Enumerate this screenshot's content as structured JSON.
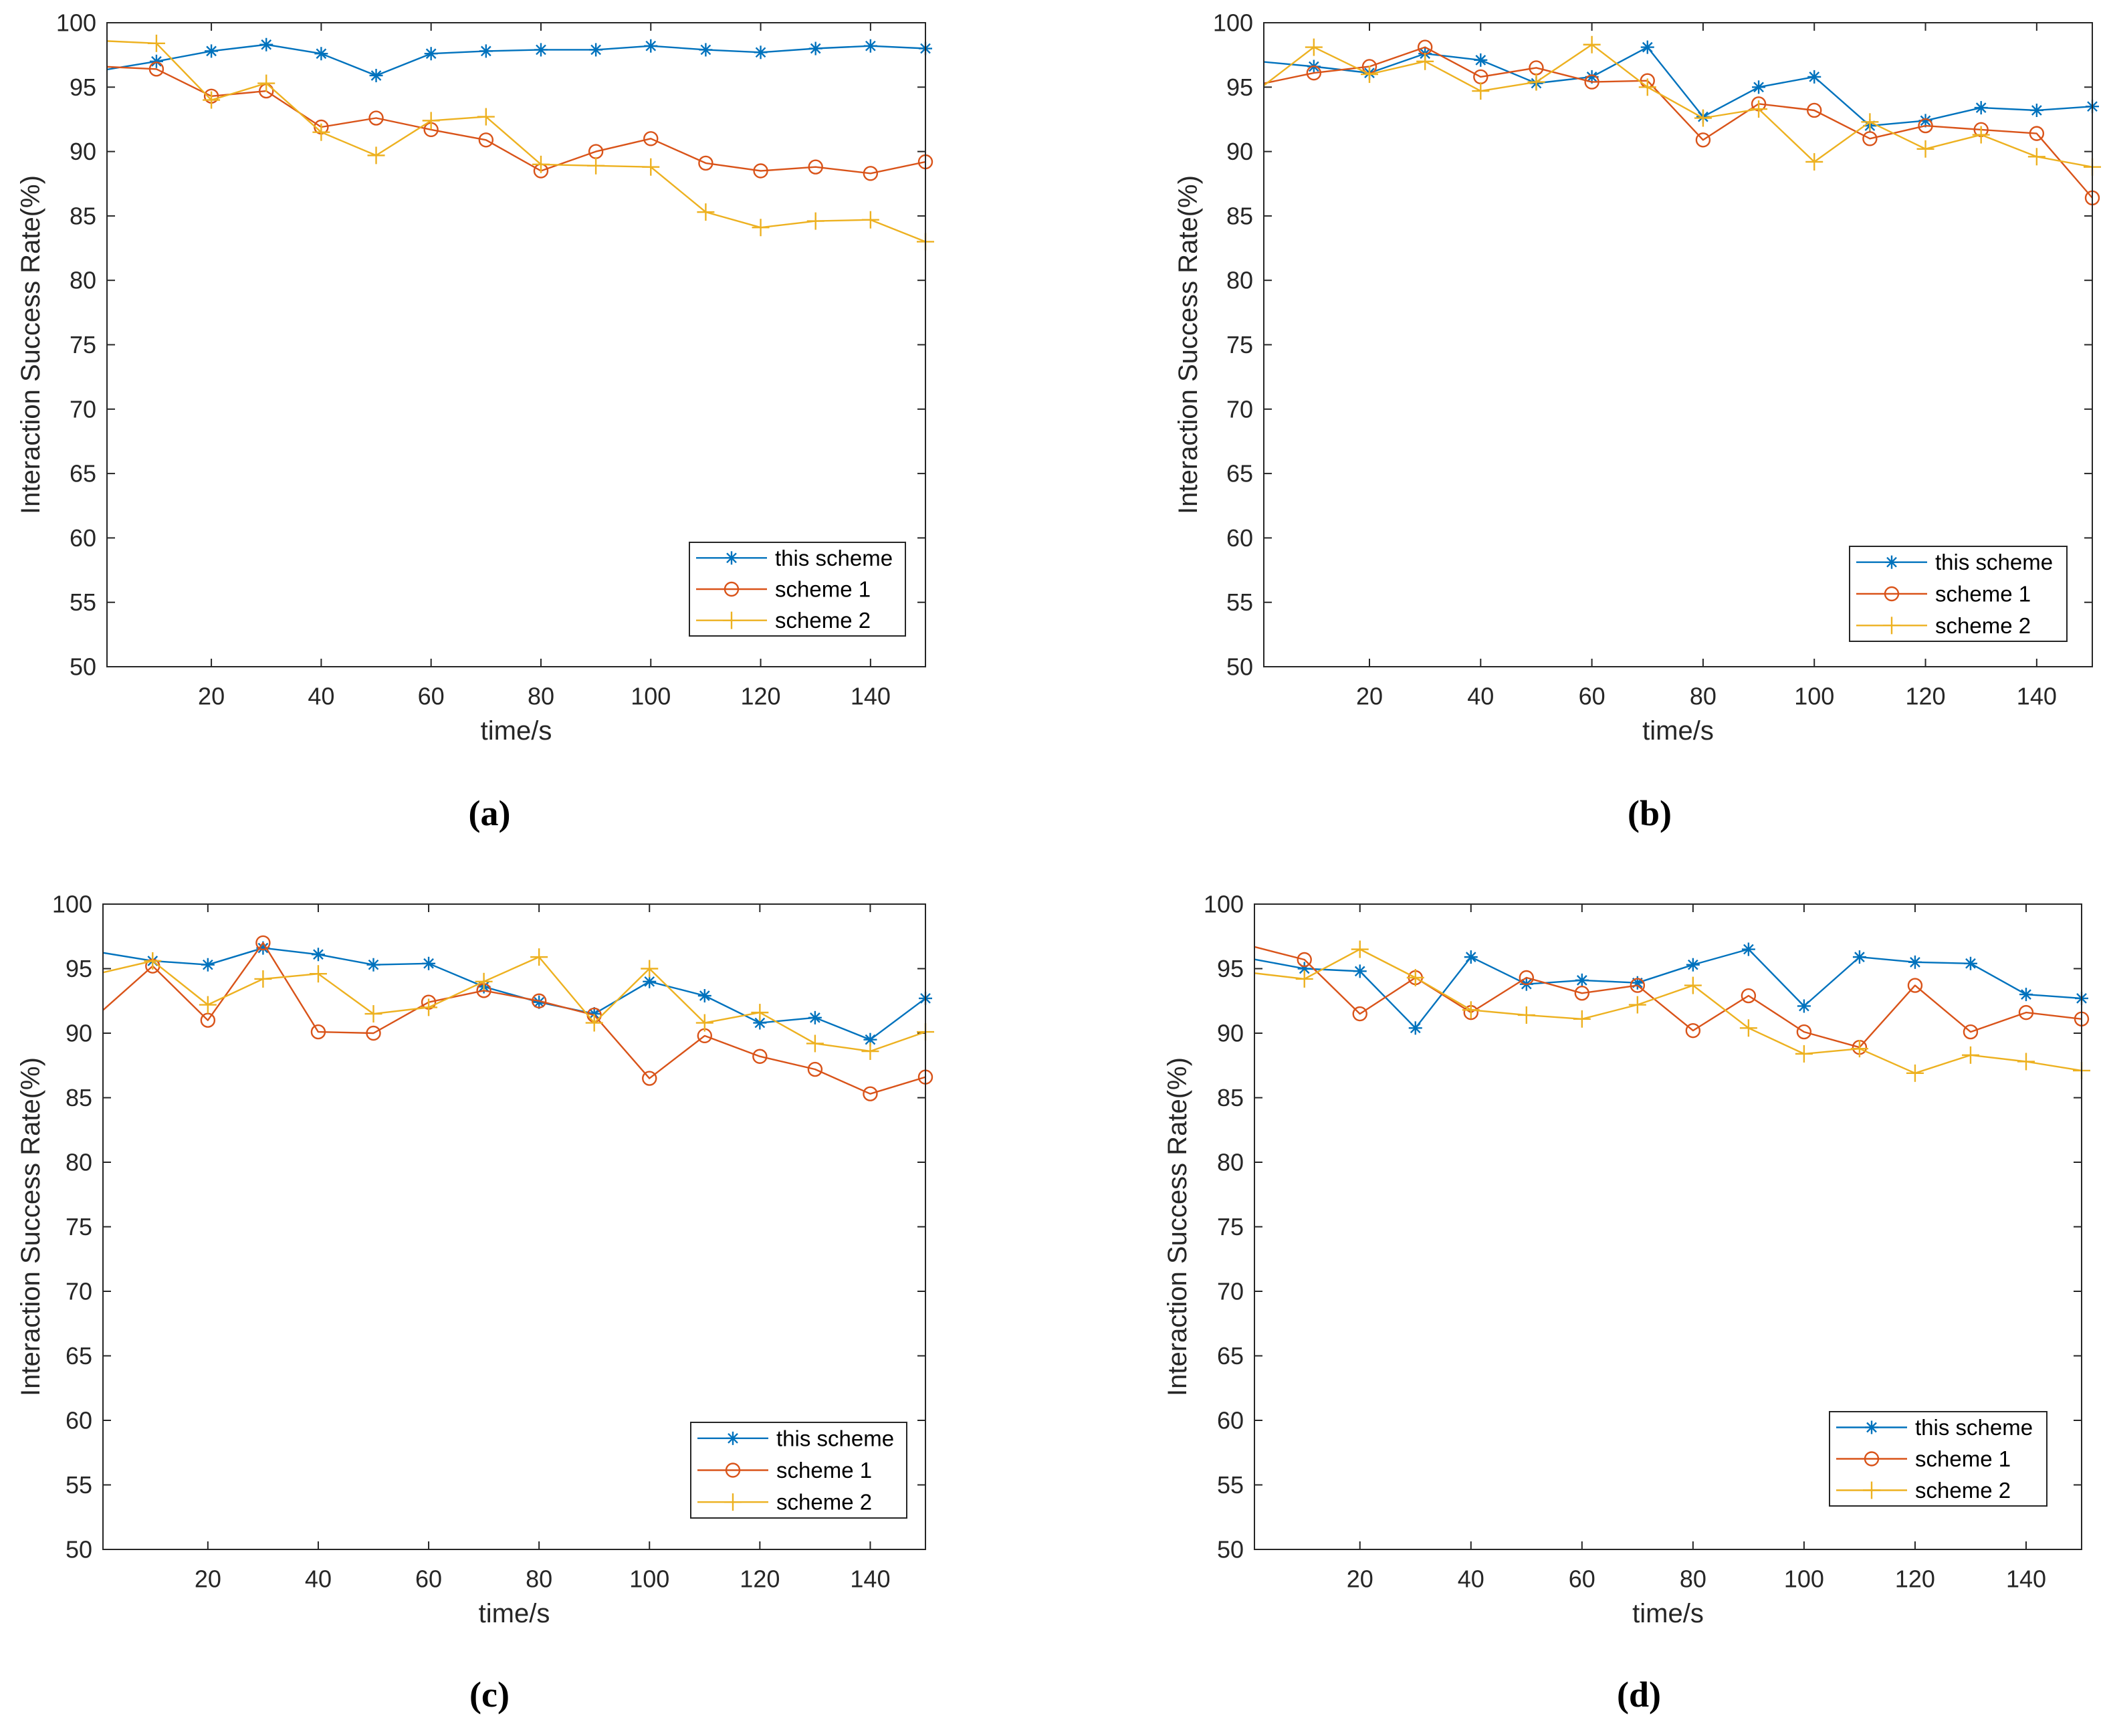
{
  "chart_data": [
    {
      "id": "a",
      "caption": "(a)",
      "type": "line",
      "xlabel": "time/s",
      "ylabel": "Interaction Success Rate(%)",
      "xlim": [
        1,
        150
      ],
      "ylim": [
        50,
        100
      ],
      "grid": false,
      "legend_position": "bottom-right",
      "xticks": [
        20,
        40,
        60,
        80,
        100,
        120,
        140
      ],
      "yticks": [
        50,
        55,
        60,
        65,
        70,
        75,
        80,
        85,
        90,
        95,
        100
      ],
      "x": [
        0,
        10,
        20,
        30,
        40,
        50,
        60,
        70,
        80,
        90,
        100,
        110,
        120,
        130,
        140,
        150
      ],
      "series": [
        {
          "name": "this scheme",
          "marker": "asterisk",
          "color": "#0072BD",
          "values": [
            96.3,
            97.0,
            97.8,
            98.3,
            97.6,
            95.9,
            97.6,
            97.8,
            97.9,
            97.9,
            98.2,
            97.9,
            97.7,
            98.0,
            98.2,
            98.0
          ]
        },
        {
          "name": "scheme 1",
          "marker": "circle",
          "color": "#D95319",
          "values": [
            96.6,
            96.4,
            94.3,
            94.7,
            91.9,
            92.6,
            91.7,
            90.9,
            88.5,
            90.0,
            91.0,
            89.1,
            88.5,
            88.8,
            88.3,
            89.2
          ]
        },
        {
          "name": "scheme 2",
          "marker": "plus",
          "color": "#EDB120",
          "values": [
            98.6,
            98.4,
            94.0,
            95.3,
            91.5,
            89.7,
            92.4,
            92.7,
            89.0,
            88.9,
            88.8,
            85.3,
            84.1,
            84.6,
            84.7,
            83.0
          ]
        }
      ]
    },
    {
      "id": "b",
      "caption": "(b)",
      "type": "line",
      "xlabel": "time/s",
      "ylabel": "Interaction Success Rate(%)",
      "xlim": [
        1,
        150
      ],
      "ylim": [
        50,
        100
      ],
      "grid": false,
      "legend_position": "bottom-right",
      "xticks": [
        20,
        40,
        60,
        80,
        100,
        120,
        140
      ],
      "yticks": [
        50,
        55,
        60,
        65,
        70,
        75,
        80,
        85,
        90,
        95,
        100
      ],
      "x": [
        0,
        10,
        20,
        30,
        40,
        50,
        60,
        70,
        80,
        90,
        100,
        110,
        120,
        130,
        140,
        150
      ],
      "series": [
        {
          "name": "this scheme",
          "marker": "asterisk",
          "color": "#0072BD",
          "values": [
            97.0,
            96.6,
            96.1,
            97.6,
            97.1,
            95.3,
            95.8,
            98.1,
            92.7,
            95.0,
            95.8,
            92.0,
            92.4,
            93.4,
            93.2,
            93.5
          ]
        },
        {
          "name": "scheme 1",
          "marker": "circle",
          "color": "#D95319",
          "values": [
            95.2,
            96.1,
            96.6,
            98.1,
            95.8,
            96.5,
            95.4,
            95.5,
            90.9,
            93.7,
            93.2,
            91.0,
            92.0,
            91.7,
            91.4,
            86.4
          ]
        },
        {
          "name": "scheme 2",
          "marker": "plus",
          "color": "#EDB120",
          "values": [
            94.8,
            98.1,
            96.0,
            97.0,
            94.7,
            95.4,
            98.3,
            95.0,
            92.6,
            93.3,
            89.2,
            92.3,
            90.2,
            91.3,
            89.6,
            88.8
          ]
        }
      ]
    },
    {
      "id": "c",
      "caption": "(c)",
      "type": "line",
      "xlabel": "time/s",
      "ylabel": "Interaction Success Rate(%)",
      "xlim": [
        1,
        150
      ],
      "ylim": [
        50,
        100
      ],
      "grid": false,
      "legend_position": "bottom-right",
      "xticks": [
        20,
        40,
        60,
        80,
        100,
        120,
        140
      ],
      "yticks": [
        50,
        55,
        60,
        65,
        70,
        75,
        80,
        85,
        90,
        95,
        100
      ],
      "x": [
        0,
        10,
        20,
        30,
        40,
        50,
        60,
        70,
        80,
        90,
        100,
        110,
        120,
        130,
        140,
        150
      ],
      "series": [
        {
          "name": "this scheme",
          "marker": "asterisk",
          "color": "#0072BD",
          "values": [
            96.3,
            95.6,
            95.3,
            96.6,
            96.1,
            95.3,
            95.4,
            93.6,
            92.4,
            91.5,
            94.0,
            92.9,
            90.8,
            91.2,
            89.5,
            92.7
          ]
        },
        {
          "name": "scheme 1",
          "marker": "circle",
          "color": "#D95319",
          "values": [
            91.4,
            95.2,
            91.0,
            97.0,
            90.1,
            90.0,
            92.4,
            93.3,
            92.5,
            91.4,
            86.5,
            89.8,
            88.2,
            87.2,
            85.3,
            86.6
          ]
        },
        {
          "name": "scheme 2",
          "marker": "plus",
          "color": "#EDB120",
          "values": [
            94.6,
            95.6,
            92.2,
            94.2,
            94.6,
            91.5,
            92.0,
            94.0,
            95.9,
            90.8,
            95.0,
            90.8,
            91.6,
            89.2,
            88.6,
            90.1
          ]
        }
      ]
    },
    {
      "id": "d",
      "caption": "(d)",
      "type": "line",
      "xlabel": "time/s",
      "ylabel": "Interaction Success Rate(%)",
      "xlim": [
        1,
        150
      ],
      "ylim": [
        50,
        100
      ],
      "grid": false,
      "legend_position": "top-right",
      "xticks": [
        20,
        40,
        60,
        80,
        100,
        120,
        140
      ],
      "yticks": [
        50,
        55,
        60,
        65,
        70,
        75,
        80,
        85,
        90,
        95,
        100
      ],
      "x": [
        0,
        10,
        20,
        30,
        40,
        50,
        60,
        70,
        80,
        90,
        100,
        110,
        120,
        130,
        140,
        150
      ],
      "series": [
        {
          "name": "this scheme",
          "marker": "asterisk",
          "color": "#0072BD",
          "values": [
            95.8,
            95.0,
            94.8,
            90.4,
            95.9,
            93.8,
            94.1,
            93.9,
            95.3,
            96.5,
            92.1,
            95.9,
            95.5,
            95.4,
            93.0,
            92.7
          ]
        },
        {
          "name": "scheme 1",
          "marker": "circle",
          "color": "#D95319",
          "values": [
            96.8,
            95.7,
            91.5,
            94.3,
            91.6,
            94.3,
            93.1,
            93.7,
            90.2,
            92.9,
            90.1,
            88.9,
            93.7,
            90.1,
            91.6,
            91.1
          ]
        },
        {
          "name": "scheme 2",
          "marker": "plus",
          "color": "#EDB120",
          "values": [
            94.7,
            94.2,
            96.5,
            94.3,
            91.8,
            91.4,
            91.1,
            92.2,
            93.7,
            90.4,
            88.4,
            88.8,
            86.9,
            88.3,
            87.8,
            87.1
          ]
        }
      ]
    }
  ]
}
